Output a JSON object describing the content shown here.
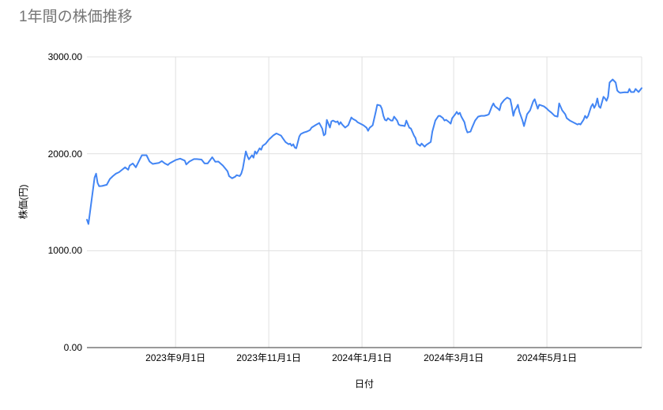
{
  "chart_data": {
    "type": "line",
    "title": "1年間の株価推移",
    "xlabel": "日付",
    "ylabel": "株価(円)",
    "legend": "none",
    "grid": true,
    "ylim": [
      0,
      3000
    ],
    "y_ticks": [
      {
        "value": 0,
        "label": "0.00"
      },
      {
        "value": 1000,
        "label": "1000.00"
      },
      {
        "value": 2000,
        "label": "2000.00"
      },
      {
        "value": 3000,
        "label": "3000.00"
      }
    ],
    "x_domain_days": [
      0,
      363
    ],
    "x_ticks": [
      {
        "day": 58,
        "label": "2023年9月1日"
      },
      {
        "day": 119,
        "label": "2023年11月1日"
      },
      {
        "day": 180,
        "label": "2024年1月1日"
      },
      {
        "day": 240,
        "label": "2024年3月1日"
      },
      {
        "day": 301,
        "label": "2024年5月1日"
      }
    ],
    "x_edge_gridline_day": 363,
    "series_name": "株価",
    "colors": {
      "line": "#4285f4",
      "grid": "#e0e0e0",
      "baseline": "#333333",
      "title": "#757575",
      "tick_text": "#000000"
    },
    "points": [
      [
        0,
        1320
      ],
      [
        1,
        1275
      ],
      [
        5,
        1755
      ],
      [
        6,
        1795
      ],
      [
        7,
        1700
      ],
      [
        8,
        1665
      ],
      [
        10,
        1668
      ],
      [
        13,
        1680
      ],
      [
        15,
        1740
      ],
      [
        17,
        1770
      ],
      [
        19,
        1795
      ],
      [
        21,
        1810
      ],
      [
        23,
        1835
      ],
      [
        25,
        1860
      ],
      [
        27,
        1835
      ],
      [
        28,
        1878
      ],
      [
        30,
        1900
      ],
      [
        32,
        1860
      ],
      [
        35,
        1955
      ],
      [
        36,
        1985
      ],
      [
        39,
        1985
      ],
      [
        41,
        1920
      ],
      [
        43,
        1895
      ],
      [
        45,
        1900
      ],
      [
        47,
        1905
      ],
      [
        49,
        1925
      ],
      [
        51,
        1900
      ],
      [
        53,
        1885
      ],
      [
        54,
        1900
      ],
      [
        58,
        1935
      ],
      [
        61,
        1950
      ],
      [
        64,
        1930
      ],
      [
        65,
        1890
      ],
      [
        67,
        1920
      ],
      [
        70,
        1945
      ],
      [
        72,
        1945
      ],
      [
        75,
        1940
      ],
      [
        77,
        1900
      ],
      [
        79,
        1900
      ],
      [
        82,
        1965
      ],
      [
        84,
        1918
      ],
      [
        86,
        1920
      ],
      [
        89,
        1878
      ],
      [
        92,
        1820
      ],
      [
        93,
        1770
      ],
      [
        95,
        1747
      ],
      [
        97,
        1763
      ],
      [
        98,
        1780
      ],
      [
        100,
        1770
      ],
      [
        101,
        1795
      ],
      [
        102,
        1850
      ],
      [
        104,
        2025
      ],
      [
        105,
        1975
      ],
      [
        106,
        1943
      ],
      [
        108,
        1985
      ],
      [
        109,
        1960
      ],
      [
        110,
        2025
      ],
      [
        111,
        2000
      ],
      [
        113,
        2057
      ],
      [
        114,
        2041
      ],
      [
        115,
        2082
      ],
      [
        117,
        2105
      ],
      [
        119,
        2145
      ],
      [
        122,
        2190
      ],
      [
        124,
        2210
      ],
      [
        127,
        2188
      ],
      [
        128,
        2165
      ],
      [
        130,
        2120
      ],
      [
        132,
        2098
      ],
      [
        133,
        2105
      ],
      [
        134,
        2082
      ],
      [
        135,
        2098
      ],
      [
        136,
        2065
      ],
      [
        137,
        2057
      ],
      [
        139,
        2180
      ],
      [
        140,
        2204
      ],
      [
        142,
        2220
      ],
      [
        144,
        2230
      ],
      [
        146,
        2245
      ],
      [
        147,
        2270
      ],
      [
        150,
        2300
      ],
      [
        152,
        2318
      ],
      [
        154,
        2260
      ],
      [
        155,
        2190
      ],
      [
        156,
        2204
      ],
      [
        157,
        2350
      ],
      [
        159,
        2270
      ],
      [
        160,
        2335
      ],
      [
        161,
        2343
      ],
      [
        163,
        2327
      ],
      [
        164,
        2335
      ],
      [
        165,
        2302
      ],
      [
        166,
        2327
      ],
      [
        167,
        2302
      ],
      [
        169,
        2270
      ],
      [
        171,
        2295
      ],
      [
        173,
        2375
      ],
      [
        174,
        2360
      ],
      [
        176,
        2343
      ],
      [
        177,
        2327
      ],
      [
        179,
        2310
      ],
      [
        181,
        2294
      ],
      [
        183,
        2269
      ],
      [
        184,
        2237
      ],
      [
        185,
        2269
      ],
      [
        187,
        2294
      ],
      [
        189,
        2433
      ],
      [
        190,
        2506
      ],
      [
        192,
        2498
      ],
      [
        193,
        2465
      ],
      [
        194,
        2392
      ],
      [
        195,
        2351
      ],
      [
        196,
        2343
      ],
      [
        197,
        2367
      ],
      [
        199,
        2343
      ],
      [
        200,
        2343
      ],
      [
        201,
        2384
      ],
      [
        203,
        2343
      ],
      [
        204,
        2302
      ],
      [
        205,
        2294
      ],
      [
        207,
        2290
      ],
      [
        208,
        2286
      ],
      [
        209,
        2343
      ],
      [
        211,
        2269
      ],
      [
        212,
        2261
      ],
      [
        214,
        2188
      ],
      [
        215,
        2163
      ],
      [
        216,
        2106
      ],
      [
        218,
        2082
      ],
      [
        219,
        2106
      ],
      [
        221,
        2073
      ],
      [
        222,
        2090
      ],
      [
        225,
        2122
      ],
      [
        226,
        2229
      ],
      [
        228,
        2343
      ],
      [
        230,
        2390
      ],
      [
        231,
        2392
      ],
      [
        233,
        2367
      ],
      [
        234,
        2343
      ],
      [
        235,
        2351
      ],
      [
        237,
        2327
      ],
      [
        238,
        2310
      ],
      [
        239,
        2367
      ],
      [
        241,
        2408
      ],
      [
        242,
        2433
      ],
      [
        243,
        2408
      ],
      [
        244,
        2424
      ],
      [
        245,
        2384
      ],
      [
        247,
        2327
      ],
      [
        248,
        2261
      ],
      [
        249,
        2220
      ],
      [
        251,
        2229
      ],
      [
        252,
        2269
      ],
      [
        254,
        2343
      ],
      [
        256,
        2384
      ],
      [
        258,
        2392
      ],
      [
        260,
        2392
      ],
      [
        262,
        2400
      ],
      [
        263,
        2408
      ],
      [
        265,
        2490
      ],
      [
        266,
        2520
      ],
      [
        267,
        2490
      ],
      [
        269,
        2465
      ],
      [
        270,
        2449
      ],
      [
        271,
        2514
      ],
      [
        273,
        2555
      ],
      [
        275,
        2580
      ],
      [
        277,
        2563
      ],
      [
        278,
        2490
      ],
      [
        279,
        2392
      ],
      [
        280,
        2449
      ],
      [
        281,
        2473
      ],
      [
        282,
        2506
      ],
      [
        283,
        2433
      ],
      [
        285,
        2343
      ],
      [
        286,
        2286
      ],
      [
        288,
        2408
      ],
      [
        290,
        2449
      ],
      [
        292,
        2540
      ],
      [
        293,
        2563
      ],
      [
        295,
        2465
      ],
      [
        296,
        2506
      ],
      [
        299,
        2490
      ],
      [
        301,
        2465
      ],
      [
        302,
        2449
      ],
      [
        304,
        2424
      ],
      [
        306,
        2392
      ],
      [
        308,
        2384
      ],
      [
        309,
        2520
      ],
      [
        311,
        2449
      ],
      [
        313,
        2408
      ],
      [
        314,
        2367
      ],
      [
        316,
        2343
      ],
      [
        318,
        2327
      ],
      [
        321,
        2302
      ],
      [
        322,
        2310
      ],
      [
        323,
        2302
      ],
      [
        325,
        2351
      ],
      [
        326,
        2392
      ],
      [
        327,
        2367
      ],
      [
        328,
        2392
      ],
      [
        330,
        2490
      ],
      [
        331,
        2514
      ],
      [
        332,
        2473
      ],
      [
        333,
        2506
      ],
      [
        334,
        2571
      ],
      [
        335,
        2490
      ],
      [
        336,
        2473
      ],
      [
        338,
        2588
      ],
      [
        339,
        2571
      ],
      [
        340,
        2547
      ],
      [
        341,
        2588
      ],
      [
        342,
        2735
      ],
      [
        343,
        2751
      ],
      [
        344,
        2767
      ],
      [
        345,
        2751
      ],
      [
        346,
        2735
      ],
      [
        347,
        2653
      ],
      [
        348,
        2637
      ],
      [
        349,
        2629
      ],
      [
        352,
        2635
      ],
      [
        354,
        2633
      ],
      [
        355,
        2669
      ],
      [
        356,
        2637
      ],
      [
        358,
        2637
      ],
      [
        359,
        2669
      ],
      [
        360,
        2653
      ],
      [
        361,
        2637
      ],
      [
        363,
        2678
      ]
    ]
  }
}
